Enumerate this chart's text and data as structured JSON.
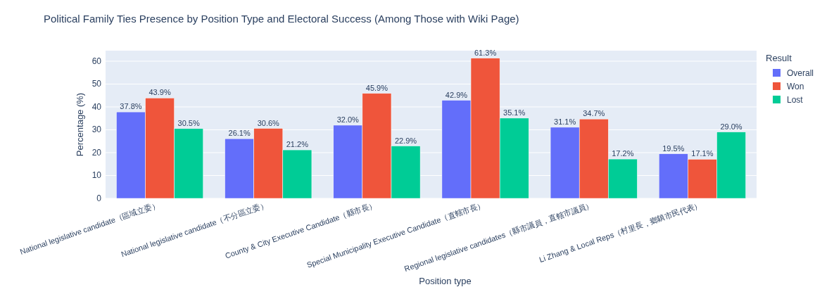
{
  "chart_data": {
    "type": "bar",
    "title": "Political Family Ties Presence by Position Type and Electoral Success (Among Those with Wiki Page)",
    "xlabel": "Position type",
    "ylabel": "Percentage (%)",
    "legend_title": "Result",
    "categories": [
      "National legislative candidate（區域立委）",
      "National legislative candidate（不分區立委）",
      "County & City Executive Candidate（縣市長）",
      "Special Municipality Executive Candidate（直轄市長）",
      "Regional legislative candidates（縣市議員，直轄市議員）",
      "Li Zhang & Local Reps（村里長，鄉鎮市民代表）"
    ],
    "series": [
      {
        "name": "Overall",
        "color": "#636efa",
        "values": [
          37.8,
          26.1,
          32.0,
          42.9,
          31.1,
          19.5
        ],
        "value_labels": [
          "37.8%",
          "26.1%",
          "32.0%",
          "42.9%",
          "31.1%",
          "19.5%"
        ]
      },
      {
        "name": "Won",
        "color": "#ef553b",
        "values": [
          43.9,
          30.6,
          45.9,
          61.3,
          34.7,
          17.1
        ],
        "value_labels": [
          "43.9%",
          "30.6%",
          "45.9%",
          "61.3%",
          "34.7%",
          "17.1%"
        ]
      },
      {
        "name": "Lost",
        "color": "#00cc96",
        "values": [
          30.5,
          21.2,
          22.9,
          35.1,
          17.2,
          29.0
        ],
        "value_labels": [
          "30.5%",
          "21.2%",
          "22.9%",
          "35.1%",
          "17.2%",
          "29.0%"
        ]
      }
    ],
    "ylim": [
      0,
      64.6
    ],
    "yticks": [
      0,
      10,
      20,
      30,
      40,
      50,
      60
    ],
    "grid": "y",
    "legend": "top right"
  }
}
